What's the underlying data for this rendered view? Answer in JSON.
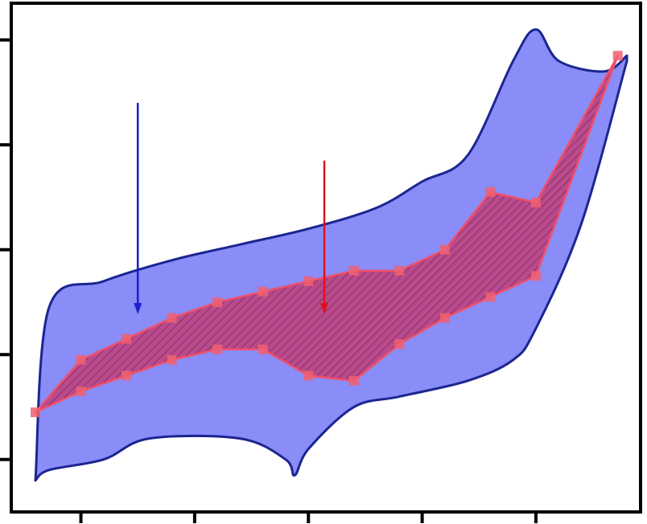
{
  "chart_data": {
    "type": "area",
    "title": "",
    "xlabel": "",
    "ylabel": "",
    "xlim": [
      0,
      13.3
    ],
    "ylim": [
      0,
      9.7
    ],
    "xticks": [
      1,
      3.5,
      6,
      8.5,
      11
    ],
    "yticks": [
      1,
      3,
      5,
      7,
      9
    ],
    "grid": false,
    "legend": "none",
    "tick_labels_visible": false,
    "colors": {
      "blue_fill": "#8a8cf7",
      "blue_outline": "#1c2590",
      "red_fill": "#c0407a",
      "red_outline": "#f0506a",
      "red_marker": "#f06070",
      "blue_arrow": "#1a1fd0",
      "red_arrow": "#e01020",
      "axis": "#000000",
      "hatch": "#7a1a40"
    },
    "series": [
      {
        "type": "area",
        "color": "#8a8cf7",
        "upper": [
          [
            0,
            0.6
          ],
          [
            0.3,
            3.9
          ],
          [
            1.5,
            4.4
          ],
          [
            3,
            4.8
          ],
          [
            4.5,
            5.1
          ],
          [
            6,
            5.4
          ],
          [
            7.5,
            5.8
          ],
          [
            8.5,
            6.3
          ],
          [
            9.5,
            6.8
          ],
          [
            10.5,
            8.6
          ],
          [
            11,
            9.2
          ],
          [
            11.5,
            8.6
          ],
          [
            12.5,
            8.4
          ],
          [
            13,
            8.7
          ]
        ],
        "lower": [
          [
            0,
            0.6
          ],
          [
            0.3,
            0.8
          ],
          [
            1.5,
            1.0
          ],
          [
            2.5,
            1.4
          ],
          [
            4.5,
            1.4
          ],
          [
            5.5,
            1.0
          ],
          [
            5.7,
            0.7
          ],
          [
            6,
            1.2
          ],
          [
            7,
            2.0
          ],
          [
            8,
            2.2
          ],
          [
            9.5,
            2.5
          ],
          [
            10.5,
            2.9
          ],
          [
            11,
            3.5
          ],
          [
            12,
            5.5
          ],
          [
            13,
            8.6
          ]
        ]
      },
      {
        "type": "area",
        "color": "#c0407a",
        "upper": [
          [
            0,
            1.9
          ],
          [
            1,
            2.9
          ],
          [
            2,
            3.3
          ],
          [
            3,
            3.7
          ],
          [
            4,
            4.0
          ],
          [
            5,
            4.2
          ],
          [
            6,
            4.4
          ],
          [
            7,
            4.6
          ],
          [
            8,
            4.6
          ],
          [
            9,
            5.0
          ],
          [
            10,
            6.1
          ],
          [
            11,
            5.9
          ],
          [
            12.8,
            8.7
          ]
        ],
        "lower": [
          [
            0,
            1.9
          ],
          [
            1,
            2.3
          ],
          [
            2,
            2.6
          ],
          [
            3,
            2.9
          ],
          [
            4,
            3.1
          ],
          [
            5,
            3.1
          ],
          [
            6,
            2.6
          ],
          [
            7,
            2.5
          ],
          [
            8,
            3.2
          ],
          [
            9,
            3.7
          ],
          [
            10,
            4.1
          ],
          [
            11,
            4.5
          ],
          [
            12.8,
            8.7
          ]
        ]
      }
    ],
    "annotations": [
      {
        "type": "arrow",
        "color": "#1a1fd0",
        "x": 2.25,
        "y_from": 7.8,
        "y_to": 3.8
      },
      {
        "type": "arrow",
        "color": "#e01020",
        "x": 6.35,
        "y_from": 6.7,
        "y_to": 3.8
      }
    ]
  }
}
